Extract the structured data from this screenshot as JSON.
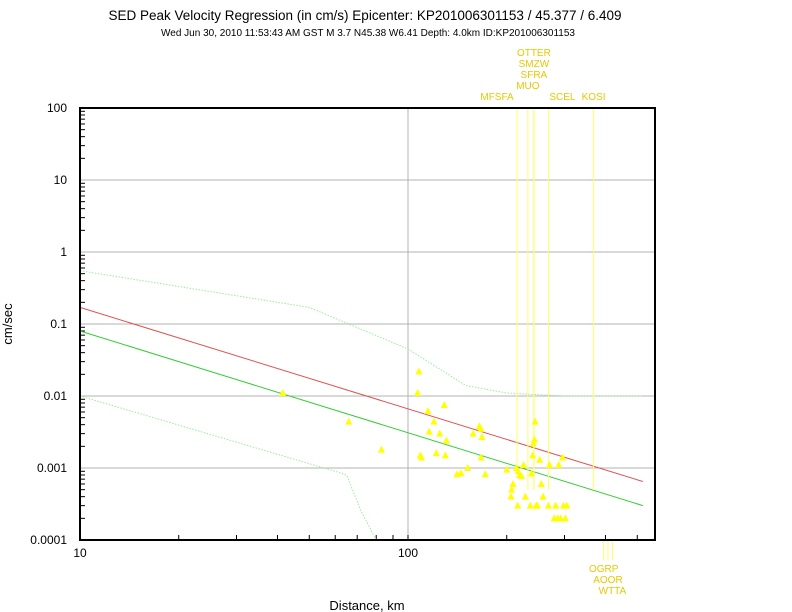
{
  "title": "SED Peak Velocity Regression (in cm/s) Epicenter: KP201006301153 / 45.377 / 6.409",
  "subtitle": "Wed Jun 30, 2010 11:53:43 AM GST   M 3.7   N45.38 W6.41   Depth: 4.0km   ID:KP201006301153",
  "chart_data": {
    "type": "scatter",
    "title": "SED Peak Velocity Regression (in cm/s) Epicenter: KP201006301153 / 45.377 / 6.409",
    "subtitle": "Wed Jun 30, 2010 11:53:43 AM GST   M 3.7   N45.38 W6.41   Depth: 4.0km   ID:KP201006301153",
    "xlabel": "Distance, km",
    "ylabel": "cm/sec",
    "xscale": "log",
    "yscale": "log",
    "xlim": [
      10,
      550
    ],
    "ylim": [
      0.0001,
      100
    ],
    "grid": true,
    "x_ticks": [
      "10",
      "100"
    ],
    "y_ticks": [
      "100",
      "10",
      "1",
      "0.1",
      "0.01",
      "0.001",
      "0.0001"
    ],
    "colors": {
      "points": "#ffff00",
      "regression_red": "#e05050",
      "regression_green": "#33cc33",
      "bounds": "#99ee99",
      "station_markers": "#ffff66",
      "station_labels": "#e6c800",
      "grid": "#b3b3b3"
    },
    "series": [
      {
        "kind": "points",
        "points": [
          [
            41.5,
            0.011
          ],
          [
            66,
            0.0044
          ],
          [
            83,
            0.0018
          ],
          [
            108,
            0.022
          ],
          [
            107,
            0.011
          ],
          [
            109,
            0.0015
          ],
          [
            110,
            0.0014
          ],
          [
            115,
            0.0062
          ],
          [
            116,
            0.0032
          ],
          [
            120,
            0.0044
          ],
          [
            122,
            0.0016
          ],
          [
            125,
            0.003
          ],
          [
            129,
            0.0075
          ],
          [
            131,
            0.0024
          ],
          [
            130,
            0.0015
          ],
          [
            141,
            0.00082
          ],
          [
            145,
            0.00085
          ],
          [
            152,
            0.001
          ],
          [
            158,
            0.003
          ],
          [
            165,
            0.0038
          ],
          [
            167,
            0.0035
          ],
          [
            167,
            0.0014
          ],
          [
            168,
            0.0027
          ],
          [
            172,
            0.00082
          ],
          [
            200,
            0.00095
          ],
          [
            206,
            0.0004
          ],
          [
            207,
            0.0005
          ],
          [
            209,
            0.0006
          ],
          [
            214,
            0.001
          ],
          [
            216,
            0.0003
          ],
          [
            217,
            0.0009
          ],
          [
            219,
            0.0008
          ],
          [
            222,
            0.00077
          ],
          [
            225,
            0.0011
          ],
          [
            228,
            0.0004
          ],
          [
            236,
            0.0003
          ],
          [
            238,
            0.00084
          ],
          [
            240,
            0.0015
          ],
          [
            241,
            0.0022
          ],
          [
            243,
            0.0025
          ],
          [
            244,
            0.0044
          ],
          [
            246,
            0.0003
          ],
          [
            248,
            0.0003
          ],
          [
            252,
            0.0013
          ],
          [
            255,
            0.0006
          ],
          [
            258,
            0.0004
          ],
          [
            268,
            0.0003
          ],
          [
            270,
            0.0011
          ],
          [
            279,
            0.0002
          ],
          [
            282,
            0.0003
          ],
          [
            286,
            0.0002
          ],
          [
            288,
            0.0011
          ],
          [
            292,
            0.0002
          ],
          [
            296,
            0.0014
          ],
          [
            298,
            0.0003
          ],
          [
            302,
            0.0002
          ],
          [
            305,
            0.0003
          ]
        ]
      },
      {
        "kind": "line",
        "points": [
          [
            10,
            0.17
          ],
          [
            520,
            0.00065
          ]
        ]
      },
      {
        "kind": "line",
        "points": [
          [
            10,
            0.08
          ],
          [
            520,
            0.0003
          ]
        ]
      },
      {
        "kind": "line",
        "style": "dotted",
        "points": [
          [
            10,
            0.55
          ],
          [
            50,
            0.17
          ],
          [
            100,
            0.045
          ],
          [
            150,
            0.014
          ],
          [
            200,
            0.011
          ],
          [
            300,
            0.01
          ],
          [
            520,
            0.01
          ]
        ]
      },
      {
        "kind": "line",
        "style": "dotted",
        "points": [
          [
            10,
            0.01
          ],
          [
            60,
            0.0009
          ],
          [
            65,
            0.0008
          ],
          [
            72,
            0.00025
          ],
          [
            80,
            0.0001
          ]
        ]
      }
    ],
    "stations": [
      {
        "label": "OTTER",
        "distance": 242,
        "position": "top"
      },
      {
        "label": "SMZW",
        "distance": 242,
        "position": "top"
      },
      {
        "label": "SFRA",
        "distance": 242,
        "position": "top"
      },
      {
        "label": "MUO",
        "distance": 232,
        "position": "top"
      },
      {
        "label": "MFSFA",
        "distance": 215,
        "position": "top"
      },
      {
        "label": "SCEL",
        "distance": 268,
        "position": "top"
      },
      {
        "label": "KOSI",
        "distance": 368,
        "position": "top"
      },
      {
        "label": "OGRP",
        "distance": 395,
        "position": "bottom"
      },
      {
        "label": "AOOR",
        "distance": 407,
        "position": "bottom"
      },
      {
        "label": "WTTA",
        "distance": 420,
        "position": "bottom"
      }
    ]
  }
}
